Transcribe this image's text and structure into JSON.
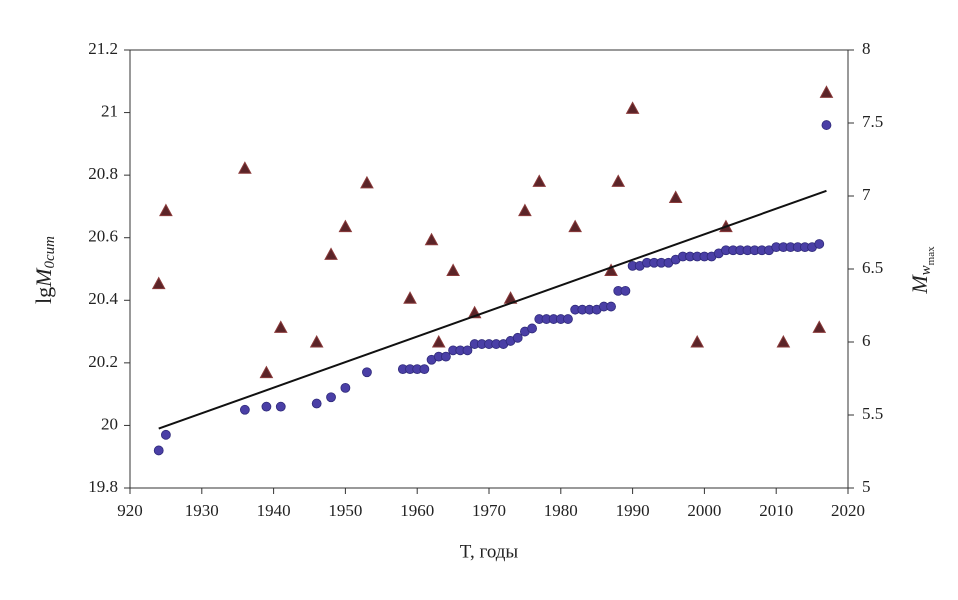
{
  "chart_data": {
    "type": "scatter",
    "x_label": "T, годы",
    "y_label": {
      "prefix": "lg",
      "main": "M",
      "sub": "0cum"
    },
    "y2_label": {
      "main": "M",
      "sub": "w",
      "subsub": "max"
    },
    "xlim": [
      1920,
      2020
    ],
    "xticks": [
      {
        "value": 1920,
        "label": "920"
      },
      1930,
      1940,
      1950,
      1960,
      1970,
      1980,
      1990,
      2000,
      2010,
      2020
    ],
    "ylim": [
      19.8,
      21.2
    ],
    "yticks": [
      19.8,
      20,
      20.2,
      20.4,
      20.6,
      20.8,
      21,
      21.2
    ],
    "y2lim": [
      5,
      8
    ],
    "y2ticks": [
      5,
      5.5,
      6,
      6.5,
      7,
      7.5,
      8
    ],
    "series": [
      {
        "type": "scatter",
        "marker": "circle",
        "color": "#4a3fa6",
        "x": [
          1924,
          1925,
          1936,
          1939,
          1941,
          1946,
          1948,
          1950,
          1953,
          1958,
          1959,
          1960,
          1961,
          1962,
          1963,
          1964,
          1965,
          1966,
          1967,
          1968,
          1969,
          1970,
          1971,
          1972,
          1973,
          1974,
          1975,
          1976,
          1977,
          1978,
          1979,
          1980,
          1981,
          1982,
          1983,
          1984,
          1985,
          1986,
          1987,
          1988,
          1989,
          1990,
          1991,
          1992,
          1993,
          1994,
          1995,
          1996,
          1997,
          1998,
          1999,
          2000,
          2001,
          2002,
          2003,
          2004,
          2005,
          2006,
          2007,
          2008,
          2009,
          2010,
          2011,
          2012,
          2013,
          2014,
          2015,
          2016,
          2017
        ],
        "values": [
          19.92,
          19.97,
          20.05,
          20.06,
          20.06,
          20.07,
          20.09,
          20.12,
          20.17,
          20.18,
          20.18,
          20.18,
          20.18,
          20.21,
          20.22,
          20.22,
          20.24,
          20.24,
          20.24,
          20.26,
          20.26,
          20.26,
          20.26,
          20.26,
          20.27,
          20.28,
          20.3,
          20.31,
          20.34,
          20.34,
          20.34,
          20.34,
          20.34,
          20.37,
          20.37,
          20.37,
          20.37,
          20.38,
          20.38,
          20.43,
          20.43,
          20.51,
          20.51,
          20.52,
          20.52,
          20.52,
          20.52,
          20.53,
          20.54,
          20.54,
          20.54,
          20.54,
          20.54,
          20.55,
          20.56,
          20.56,
          20.56,
          20.56,
          20.56,
          20.56,
          20.56,
          20.57,
          20.57,
          20.57,
          20.57,
          20.57,
          20.57,
          20.58,
          20.96
        ]
      },
      {
        "type": "scatter",
        "marker": "triangle",
        "color": "#5b2428",
        "axis": "y2",
        "x": [
          1924,
          1925,
          1936,
          1939,
          1941,
          1946,
          1948,
          1950,
          1953,
          1959,
          1962,
          1963,
          1965,
          1968,
          1973,
          1975,
          1977,
          1982,
          1987,
          1988,
          1990,
          1996,
          1999,
          2003,
          2011,
          2016,
          2017
        ],
        "values": [
          6.4,
          6.9,
          7.19,
          5.79,
          6.1,
          6.0,
          6.6,
          6.79,
          7.09,
          6.3,
          6.7,
          6.0,
          6.49,
          6.2,
          6.3,
          6.9,
          7.1,
          6.79,
          6.49,
          7.1,
          7.6,
          6.99,
          6.0,
          6.79,
          6.0,
          6.1,
          7.71
        ]
      },
      {
        "type": "line",
        "color": "#111111",
        "x": [
          1924,
          2017
        ],
        "values": [
          19.99,
          20.75
        ]
      }
    ]
  }
}
